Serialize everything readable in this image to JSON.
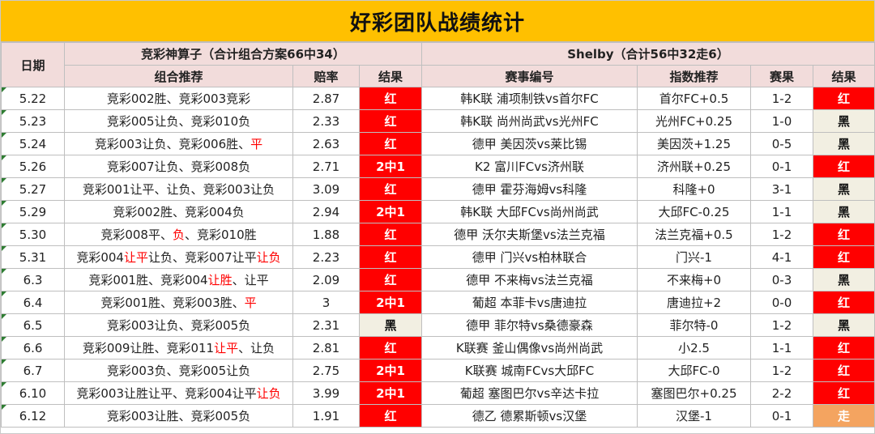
{
  "title": "好彩团队战绩统计",
  "headers": {
    "date": "日期",
    "left_group": "竞彩神算子（合计组合方案66中34）",
    "right_group": "Shelby（合计56中32走6）",
    "combo": "组合推荐",
    "odds": "赔率",
    "result": "结果",
    "match": "赛事编号",
    "index": "指数推荐",
    "score": "赛果",
    "result2": "结果"
  },
  "colors": {
    "title_bg": "#ffc000",
    "header_bg": "#f2dcdb",
    "red_result": "#ff0000",
    "black_result": "#f2efe2",
    "walk_result": "#f4a460",
    "highlight_text": "#ff0000"
  },
  "rows": [
    {
      "date": "5.22",
      "combo": [
        {
          "t": "竞彩002胜、竞彩003竞彩",
          "hl": false
        }
      ],
      "odds": "2.87",
      "result": "红",
      "result_type": "red",
      "match": "韩K联 浦项制铁vs首尔FC",
      "index": "首尔FC+0.5",
      "score": "1-2",
      "result2": "红",
      "result2_type": "red"
    },
    {
      "date": "5.23",
      "combo": [
        {
          "t": "竞彩005让负、竞彩010负",
          "hl": false
        }
      ],
      "odds": "2.33",
      "result": "红",
      "result_type": "red",
      "match": "韩K联 尚州尚武vs光州FC",
      "index": "光州FC+0.25",
      "score": "1-0",
      "result2": "黑",
      "result2_type": "black"
    },
    {
      "date": "5.24",
      "combo": [
        {
          "t": "竞彩003让负、竞彩006胜、",
          "hl": false
        },
        {
          "t": "平",
          "hl": true
        }
      ],
      "odds": "2.63",
      "result": "红",
      "result_type": "red",
      "match": "德甲 美因茨vs莱比锡",
      "index": "美因茨+1.25",
      "score": "0-5",
      "result2": "黑",
      "result2_type": "black"
    },
    {
      "date": "5.26",
      "combo": [
        {
          "t": "竞彩007让负、竞彩008负",
          "hl": false
        }
      ],
      "odds": "2.71",
      "result": "2中1",
      "result_type": "red",
      "match": "K2 富川FCvs济州联",
      "index": "济州联+0.25",
      "score": "0-1",
      "result2": "红",
      "result2_type": "red"
    },
    {
      "date": "5.27",
      "combo": [
        {
          "t": "竞彩001让平、让负、竞彩003让负",
          "hl": false
        }
      ],
      "odds": "3.09",
      "result": "红",
      "result_type": "red",
      "match": "德甲 霍芬海姆vs科隆",
      "index": "科隆+0",
      "score": "3-1",
      "result2": "黑",
      "result2_type": "black"
    },
    {
      "date": "5.29",
      "combo": [
        {
          "t": "竞彩002胜、竞彩004负",
          "hl": false
        }
      ],
      "odds": "2.94",
      "result": "2中1",
      "result_type": "red",
      "match": "韩K联 大邱FCvs尚州尚武",
      "index": "大邱FC-0.25",
      "score": "1-1",
      "result2": "黑",
      "result2_type": "black"
    },
    {
      "date": "5.30",
      "combo": [
        {
          "t": "竞彩008平、",
          "hl": false
        },
        {
          "t": "负",
          "hl": true
        },
        {
          "t": "、竞彩010胜",
          "hl": false
        }
      ],
      "odds": "1.88",
      "result": "红",
      "result_type": "red",
      "match": "德甲 沃尔夫斯堡vs法兰克福",
      "index": "法兰克福+0.5",
      "score": "1-2",
      "result2": "红",
      "result2_type": "red"
    },
    {
      "date": "5.31",
      "combo": [
        {
          "t": "竞彩004",
          "hl": false
        },
        {
          "t": "让平",
          "hl": true
        },
        {
          "t": "让负、竞彩007让平",
          "hl": false
        },
        {
          "t": "让负",
          "hl": true
        }
      ],
      "odds": "2.23",
      "result": "红",
      "result_type": "red",
      "match": "德甲 门兴vs柏林联合",
      "index": "门兴-1",
      "score": "4-1",
      "result2": "红",
      "result2_type": "red"
    },
    {
      "date": "6.3",
      "combo": [
        {
          "t": "竞彩001胜、竞彩004",
          "hl": false
        },
        {
          "t": "让胜",
          "hl": true
        },
        {
          "t": "、让平",
          "hl": false
        }
      ],
      "odds": "2.09",
      "result": "红",
      "result_type": "red",
      "match": "德甲 不来梅vs法兰克福",
      "index": "不来梅+0",
      "score": "0-3",
      "result2": "黑",
      "result2_type": "black"
    },
    {
      "date": "6.4",
      "combo": [
        {
          "t": "竞彩001胜、竞彩003胜、",
          "hl": false
        },
        {
          "t": "平",
          "hl": true
        }
      ],
      "odds": "3",
      "result": "2中1",
      "result_type": "red",
      "match": "葡超 本菲卡vs唐迪拉",
      "index": "唐迪拉+2",
      "score": "0-0",
      "result2": "红",
      "result2_type": "red"
    },
    {
      "date": "6.5",
      "combo": [
        {
          "t": "竞彩003让负、竞彩005负",
          "hl": false
        }
      ],
      "odds": "2.31",
      "result": "黑",
      "result_type": "black",
      "match": "德甲 菲尔特vs桑德豪森",
      "index": "菲尔特-0",
      "score": "1-2",
      "result2": "黑",
      "result2_type": "black"
    },
    {
      "date": "6.6",
      "combo": [
        {
          "t": "竞彩009让胜、竞彩011",
          "hl": false
        },
        {
          "t": "让平",
          "hl": true
        },
        {
          "t": "、让负",
          "hl": false
        }
      ],
      "odds": "2.81",
      "result": "红",
      "result_type": "red",
      "match": "K联赛 釜山偶像vs尚州尚武",
      "index": "小2.5",
      "score": "1-1",
      "result2": "红",
      "result2_type": "red"
    },
    {
      "date": "6.7",
      "combo": [
        {
          "t": "竞彩003负、竞彩005让负",
          "hl": false
        }
      ],
      "odds": "2.75",
      "result": "2中1",
      "result_type": "red",
      "match": "K联赛 城南FCvs大邱FC",
      "index": "大邱FC-0",
      "score": "1-2",
      "result2": "红",
      "result2_type": "red"
    },
    {
      "date": "6.10",
      "combo": [
        {
          "t": "竞彩003让胜让平、竞彩004让平",
          "hl": false
        },
        {
          "t": "让负",
          "hl": true
        }
      ],
      "odds": "3.99",
      "result": "2中1",
      "result_type": "red",
      "match": "葡超 塞图巴尔vs辛达卡拉",
      "index": "塞图巴尔+0.25",
      "score": "2-2",
      "result2": "红",
      "result2_type": "red"
    },
    {
      "date": "6.12",
      "combo": [
        {
          "t": "竞彩003让胜、竞彩005负",
          "hl": false
        }
      ],
      "odds": "1.91",
      "result": "红",
      "result_type": "red",
      "match": "德乙 德累斯顿vs汉堡",
      "index": "汉堡-1",
      "score": "0-1",
      "result2": "走",
      "result2_type": "walk"
    }
  ]
}
